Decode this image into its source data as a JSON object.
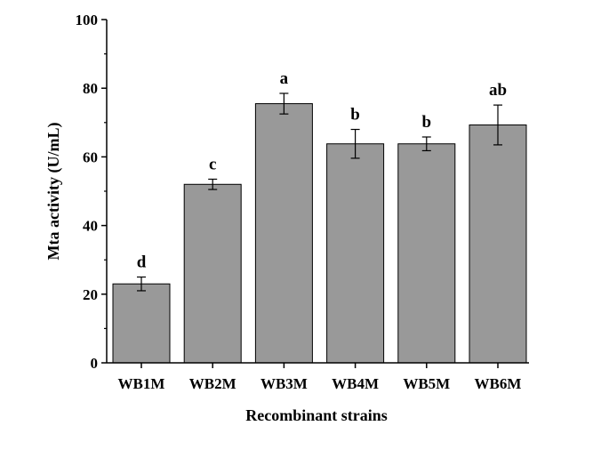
{
  "chart_data": {
    "type": "bar",
    "title": "",
    "xlabel": "Recombinant strains",
    "ylabel": "Mta activity (U/mL)",
    "categories": [
      "WB1M",
      "WB2M",
      "WB3M",
      "WB4M",
      "WB5M",
      "WB6M"
    ],
    "values": [
      23.0,
      52.0,
      75.5,
      63.8,
      63.8,
      69.3
    ],
    "errors": [
      2.0,
      1.5,
      3.0,
      4.2,
      2.0,
      5.8
    ],
    "significance": [
      "d",
      "c",
      "a",
      "b",
      "b",
      "ab"
    ],
    "ylim": [
      0,
      100
    ],
    "yticks": [
      "0",
      "20",
      "40",
      "60",
      "80",
      "100"
    ],
    "bar_color": "#999999",
    "grid": false,
    "legend": "none"
  }
}
